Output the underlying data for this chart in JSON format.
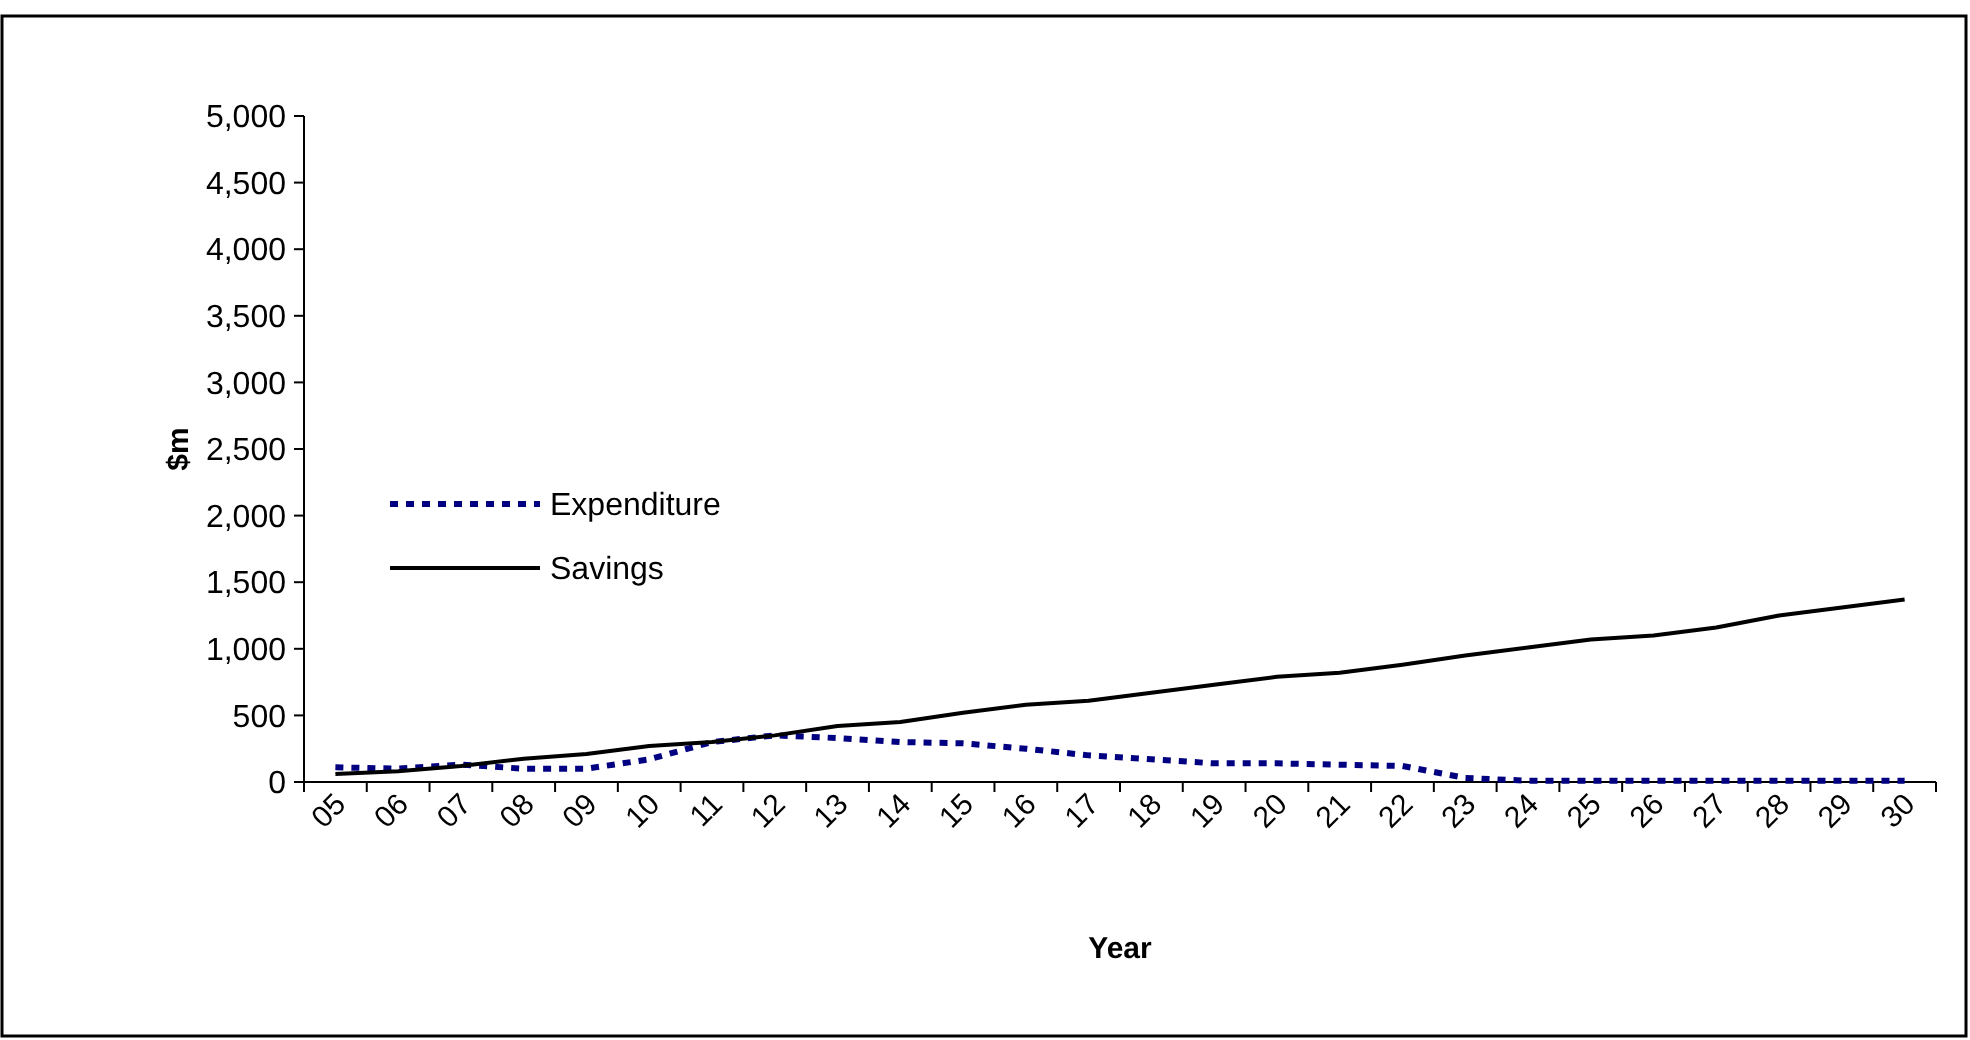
{
  "chart_data": {
    "type": "line",
    "xlabel": "Year",
    "ylabel": "$m",
    "categories": [
      "05",
      "06",
      "07",
      "08",
      "09",
      "10",
      "11",
      "12",
      "13",
      "14",
      "15",
      "16",
      "17",
      "18",
      "19",
      "20",
      "21",
      "22",
      "23",
      "24",
      "25",
      "26",
      "27",
      "28",
      "29",
      "30"
    ],
    "series": [
      {
        "name": "Expenditure",
        "color": "#000080",
        "line_style": "dotted",
        "values": [
          110,
          100,
          130,
          100,
          100,
          170,
          300,
          350,
          330,
          300,
          290,
          250,
          200,
          170,
          140,
          140,
          130,
          120,
          30,
          10,
          10,
          10,
          10,
          10,
          10,
          10
        ]
      },
      {
        "name": "Savings",
        "color": "#000000",
        "line_style": "solid",
        "values": [
          60,
          80,
          120,
          175,
          210,
          270,
          300,
          350,
          420,
          450,
          520,
          580,
          610,
          670,
          730,
          790,
          820,
          880,
          950,
          1010,
          1070,
          1100,
          1160,
          1250,
          1310,
          1370
        ]
      }
    ],
    "ylim": [
      0,
      5000
    ],
    "yticks": [
      {
        "value": 0,
        "label": "0"
      },
      {
        "value": 500,
        "label": "500"
      },
      {
        "value": 1000,
        "label": "1,000"
      },
      {
        "value": 1500,
        "label": "1,500"
      },
      {
        "value": 2000,
        "label": "2,000"
      },
      {
        "value": 2500,
        "label": "2,500"
      },
      {
        "value": 3000,
        "label": "3,000"
      },
      {
        "value": 3500,
        "label": "3,500"
      },
      {
        "value": 4000,
        "label": "4,000"
      },
      {
        "value": 4500,
        "label": "4,500"
      },
      {
        "value": 5000,
        "label": "5,000"
      }
    ],
    "grid": false,
    "legend": "left",
    "marker": "none"
  }
}
